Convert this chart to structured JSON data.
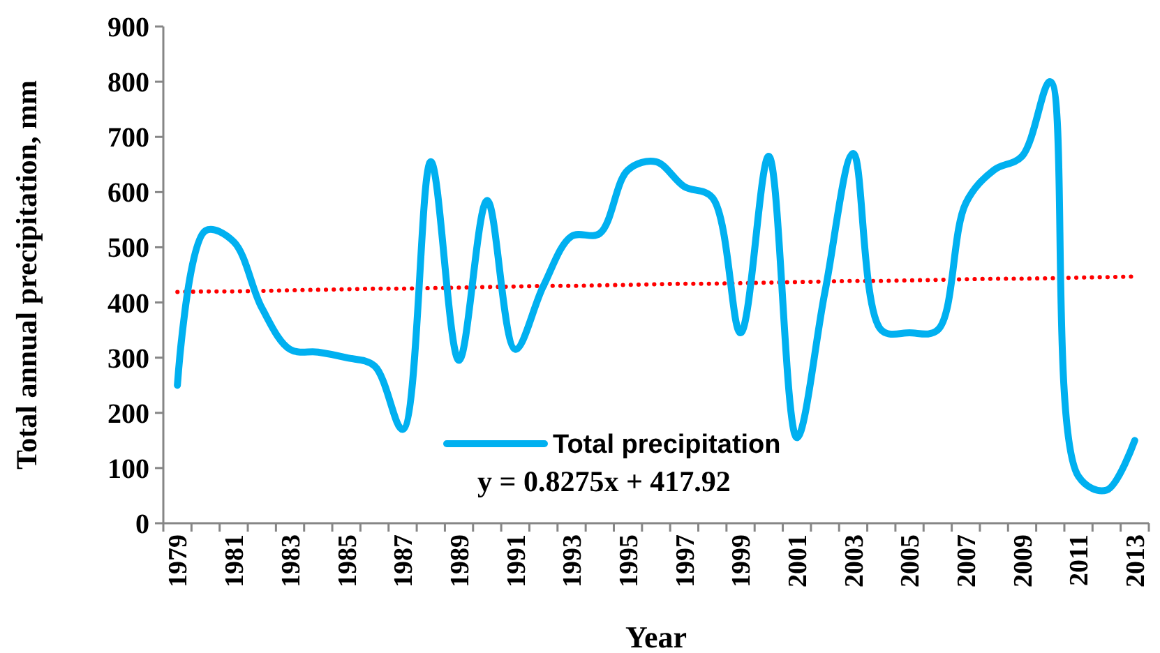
{
  "chart_data": {
    "type": "line",
    "xlabel": "Year",
    "ylabel": "Total annual precipitation, mm",
    "categories": [
      "1979",
      null,
      "1981",
      null,
      "1983",
      null,
      "1985",
      null,
      "1987",
      null,
      "1989",
      null,
      "1991",
      null,
      "1993",
      null,
      "1995",
      null,
      "1997",
      null,
      "1999",
      null,
      "2001",
      null,
      "2003",
      null,
      "2005",
      null,
      "2007",
      null,
      "2009",
      null,
      "2011",
      null,
      "2013"
    ],
    "series": [
      {
        "name": "Total precipitation",
        "color": "#00b0f0",
        "line_style": "solid",
        "values": [
          250,
          530,
          510,
          390,
          315,
          310,
          300,
          285,
          170,
          655,
          295,
          585,
          315,
          430,
          520,
          525,
          640,
          655,
          610,
          590,
          345,
          665,
          155,
          420,
          670,
          350,
          345,
          350,
          580,
          640,
          665,
          800,
          85,
          60,
          150
        ]
      },
      {
        "type": "line",
        "color": "#ff0000",
        "line_style": "dotted",
        "values": [
          419,
          420,
          420,
          421,
          422,
          423,
          424,
          425,
          425,
          426,
          427,
          428,
          429,
          430,
          430,
          431,
          432,
          433,
          434,
          434,
          435,
          436,
          437,
          438,
          439,
          439,
          440,
          441,
          442,
          443,
          443,
          444,
          445,
          446,
          447
        ]
      }
    ],
    "annotations": [
      "y = 0.8275x + 417.92"
    ],
    "ylim": [
      0,
      900
    ],
    "yticks": [
      0,
      100,
      200,
      300,
      400,
      500,
      600,
      700,
      800,
      900
    ],
    "grid": false,
    "legend": "bottom",
    "marker": "none"
  }
}
